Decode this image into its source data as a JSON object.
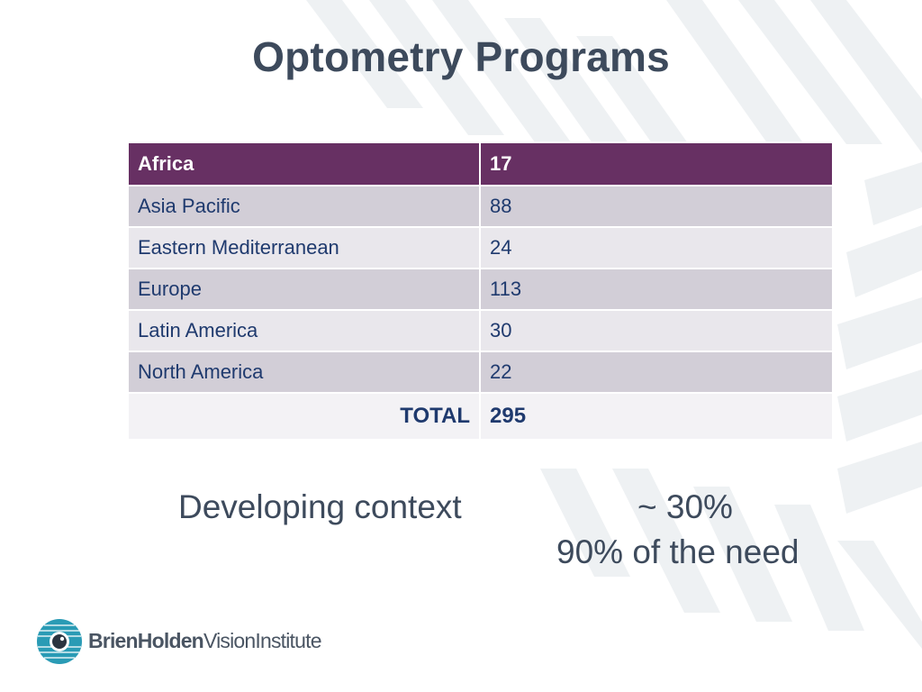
{
  "title": "Optometry Programs",
  "table": {
    "rows": [
      {
        "region": "Africa",
        "count": "17"
      },
      {
        "region": "Asia Pacific",
        "count": "88"
      },
      {
        "region": "Eastern Mediterranean",
        "count": "24"
      },
      {
        "region": "Europe",
        "count": "113"
      },
      {
        "region": "Latin America",
        "count": "30"
      },
      {
        "region": "North America",
        "count": "22"
      }
    ],
    "total_label": "TOTAL",
    "total_value": "295"
  },
  "summary": {
    "developing_label": "Developing context",
    "developing_value": "~ 30%",
    "need_text": "90% of the need"
  },
  "logo": {
    "text_bold": "BrienHolden",
    "text_regular": "VisionInstitute"
  },
  "colors": {
    "title": "#3d4a5c",
    "header_row": "#673063",
    "row_dark": "#d2ced7",
    "row_light": "#e9e7ec",
    "cell_text": "#1f3a6e",
    "logo_mark": "#2a9bb5"
  }
}
